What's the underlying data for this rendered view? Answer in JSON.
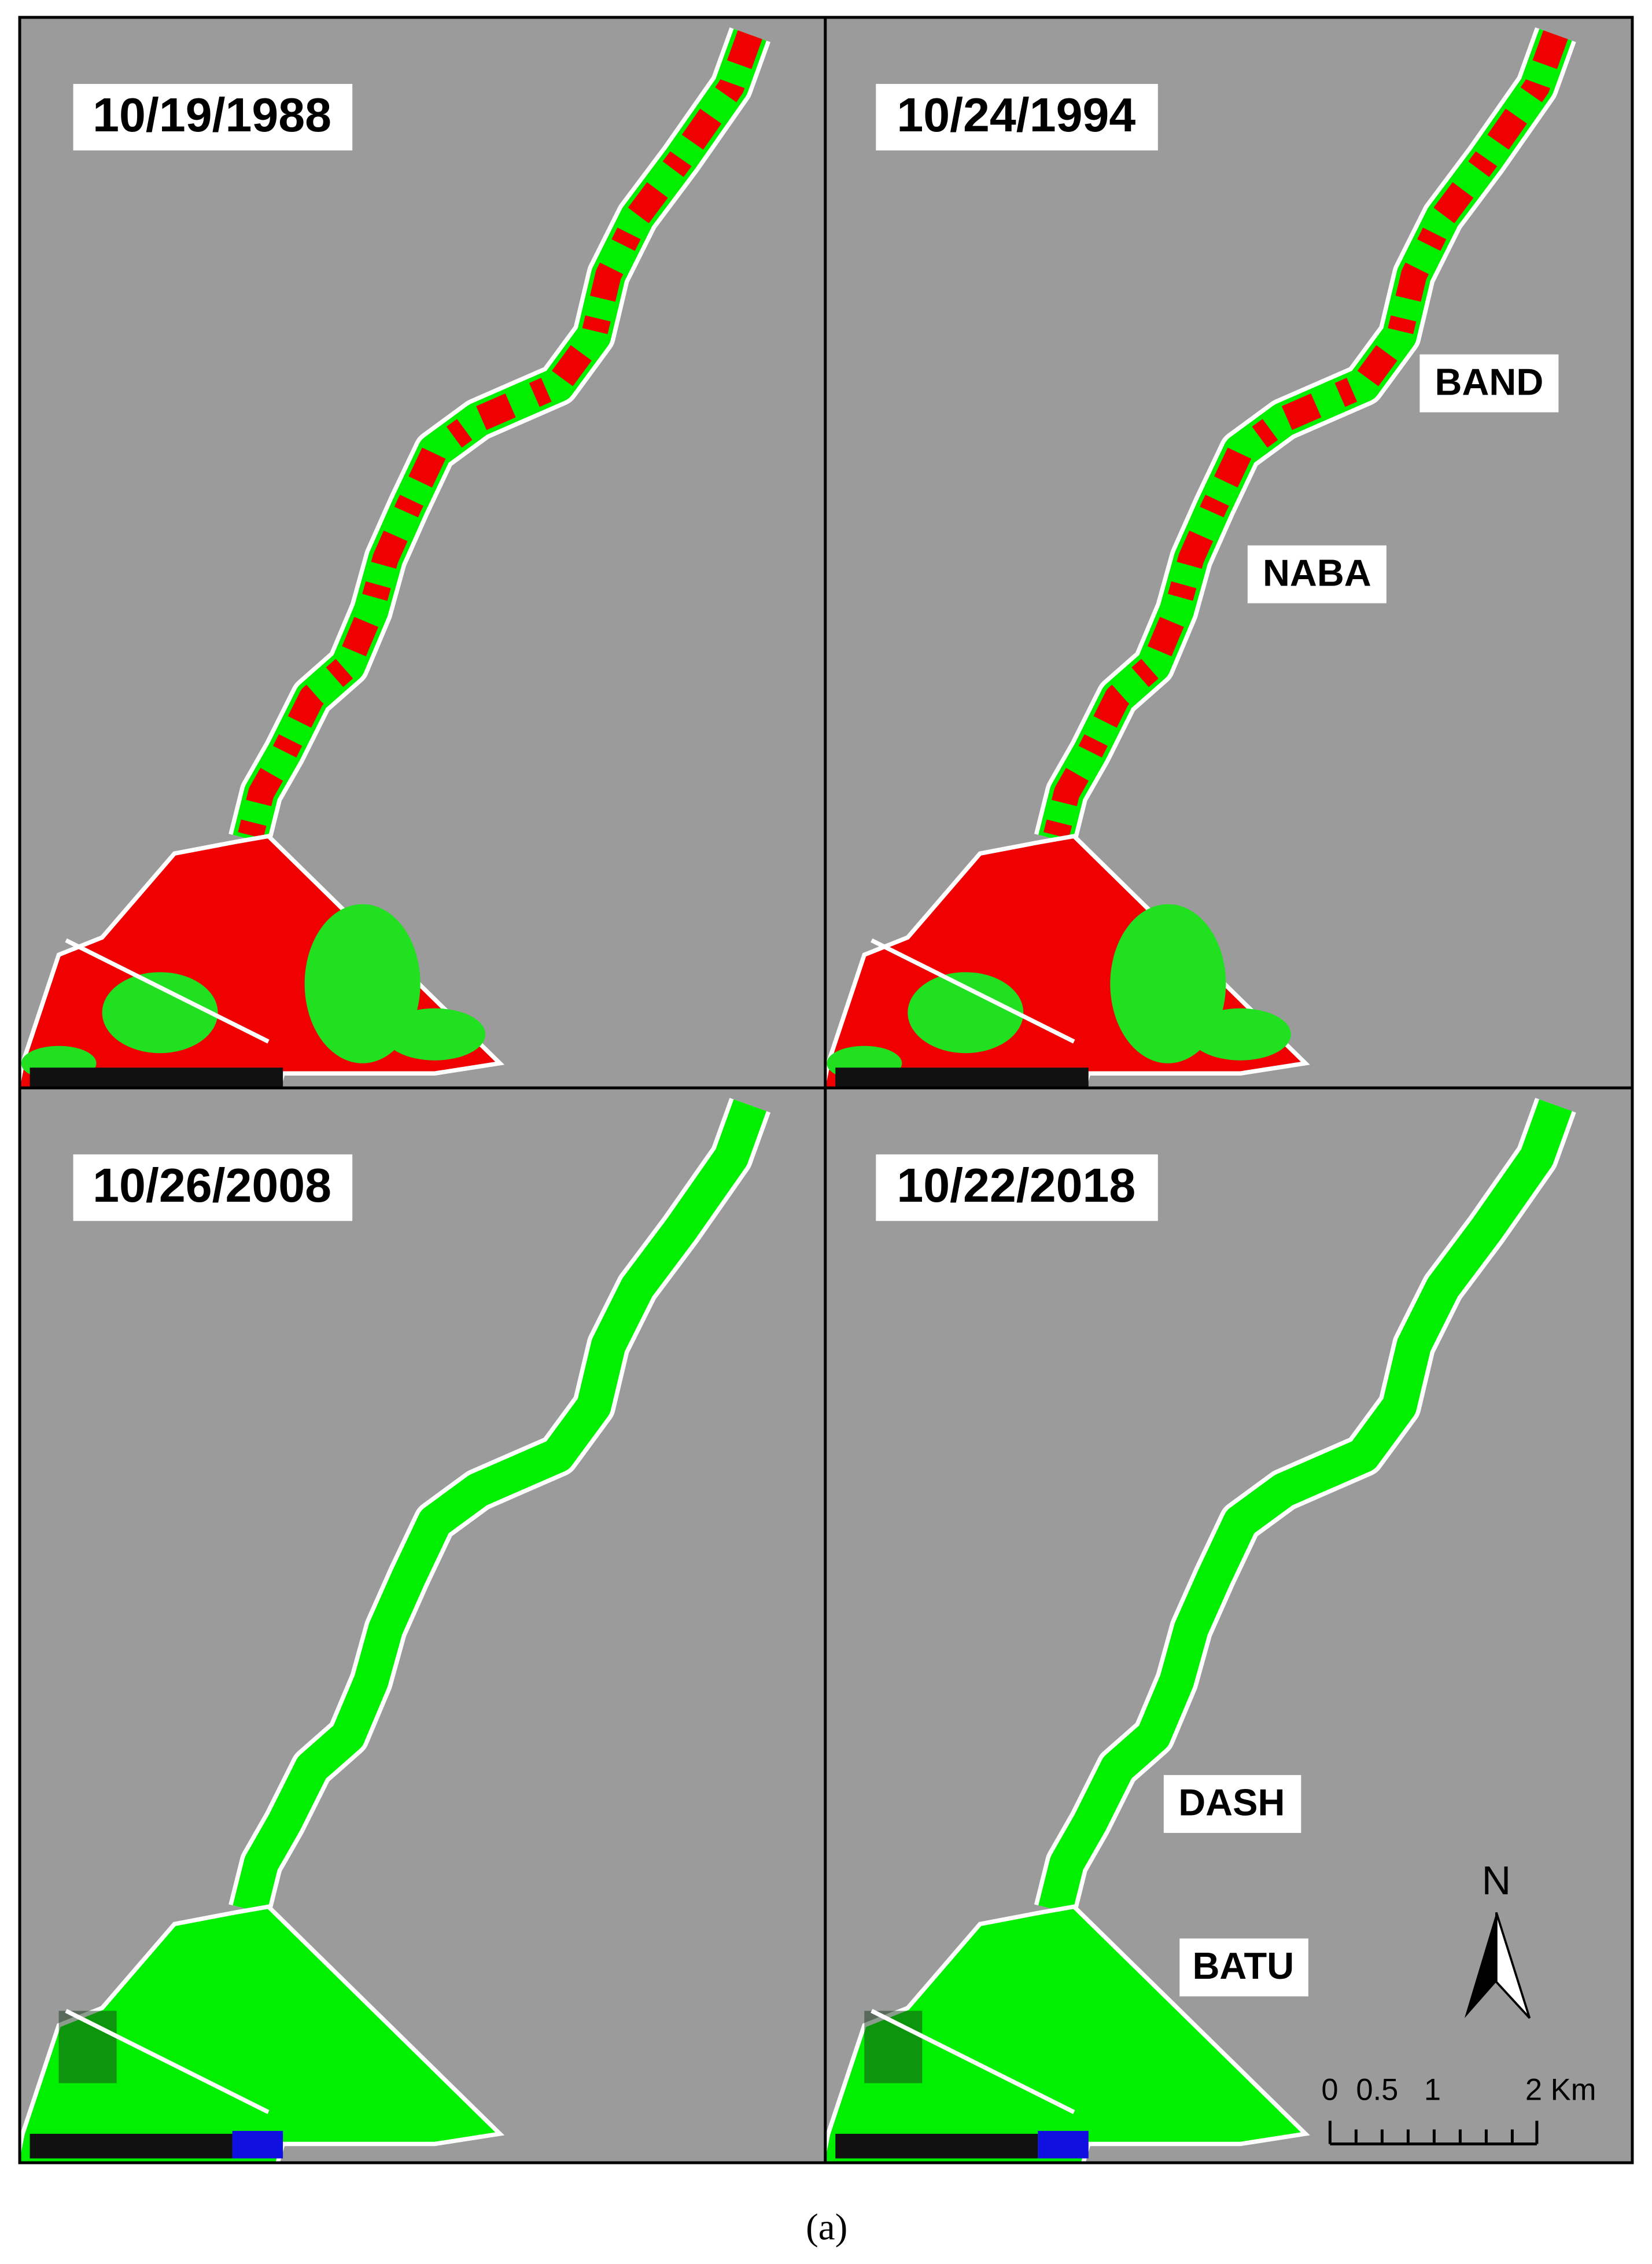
{
  "panels": [
    {
      "date": "10/19/1988"
    },
    {
      "date": "10/24/1994"
    },
    {
      "date": "10/26/2008"
    },
    {
      "date": "10/22/2018"
    }
  ],
  "region_labels": [
    "BAND",
    "NABA",
    "DASH",
    "BATU"
  ],
  "north_arrow": "N",
  "scale_bar": {
    "labels": [
      "0",
      "0.5",
      "1",
      "2 Km"
    ]
  },
  "caption": "(a)"
}
